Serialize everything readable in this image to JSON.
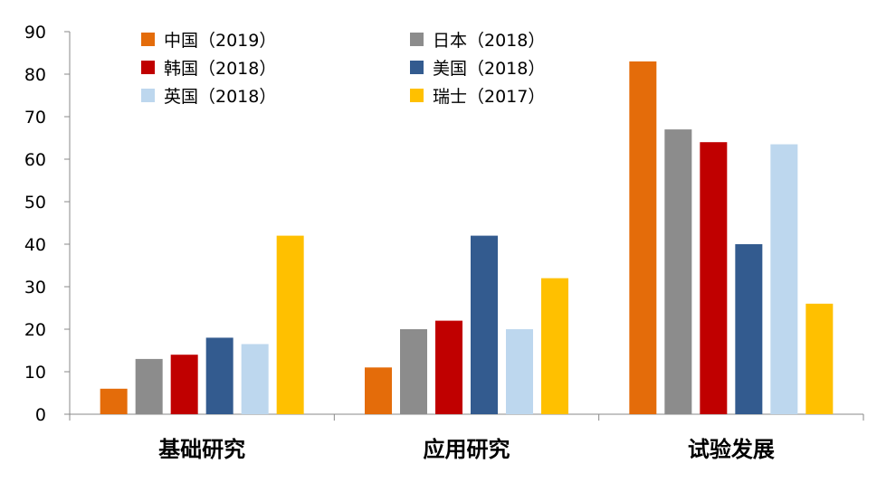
{
  "chart_data": {
    "type": "bar",
    "categories": [
      "基础研究",
      "应用研究",
      "试验发展"
    ],
    "series": [
      {
        "name": "中国（2019）",
        "color": "#E46C0A",
        "values": [
          6,
          11,
          83
        ]
      },
      {
        "name": "日本（2018）",
        "color": "#8C8C8C",
        "values": [
          13,
          20,
          67
        ]
      },
      {
        "name": "韩国（2018）",
        "color": "#C00000",
        "values": [
          14,
          22,
          64
        ]
      },
      {
        "name": "美国（2018）",
        "color": "#335B8F",
        "values": [
          18,
          42,
          40
        ]
      },
      {
        "name": "英国（2018）",
        "color": "#BDD7EE",
        "values": [
          16.5,
          20,
          63.5
        ]
      },
      {
        "name": "瑞士（2017）",
        "color": "#FFC000",
        "values": [
          42,
          32,
          26
        ]
      }
    ],
    "ylim": [
      0,
      90
    ],
    "yticks": [
      0,
      10,
      20,
      30,
      40,
      50,
      60,
      70,
      80,
      90
    ],
    "legend_position": "top-left",
    "grid": false
  }
}
